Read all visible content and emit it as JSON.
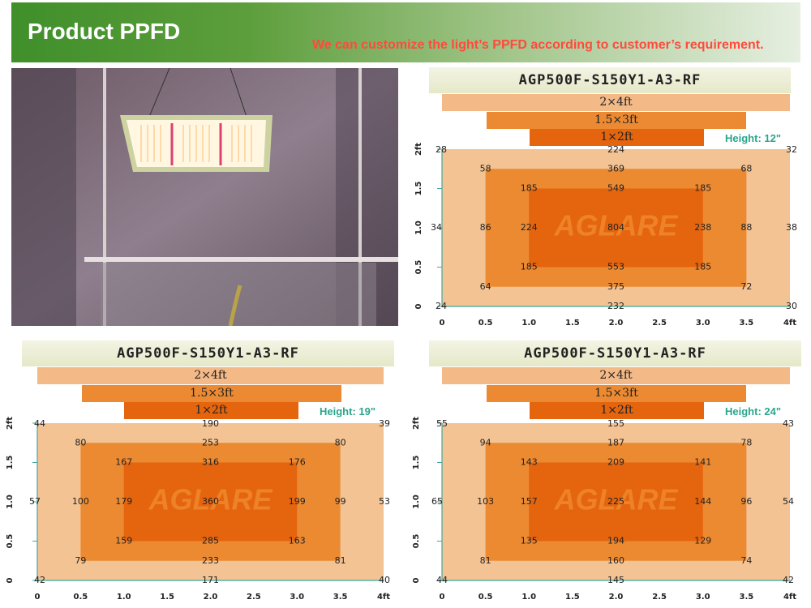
{
  "header": {
    "title": "Product PPFD",
    "subtitle": "We can customize the light’s PPFD according to customer’s requirement.",
    "colors": {
      "green": "#4d952f",
      "subtitle": "#ff4a3c"
    }
  },
  "photo": {
    "icon": "grow-light-photo"
  },
  "brand_watermark": "AGLARE",
  "colors": {
    "zone_outer": "#f3c394",
    "zone_mid": "#ec8a32",
    "zone_inner": "#e5640e",
    "bar_outer": "#f3b987",
    "height_text": "#2aa58d"
  },
  "x_ticks": [
    "0",
    "0.5",
    "1.0",
    "1.5",
    "2.0",
    "2.5",
    "3.0",
    "3.5",
    "4ft"
  ],
  "y_ticks": [
    "0",
    "0.5",
    "1.0",
    "1.5",
    "2ft"
  ],
  "panels": [
    {
      "model": "AGP500F-S150Y1-A3-RF",
      "bars": [
        "2×4ft",
        "1.5×3ft",
        "1×2ft"
      ],
      "height": "Height: 12\"",
      "values": {
        "r20": [
          "28",
          "224",
          "32"
        ],
        "r175": [
          "58",
          "369",
          "68"
        ],
        "r15": [
          "185",
          "549",
          "185"
        ],
        "r10": [
          "34",
          "86",
          "224",
          "804",
          "238",
          "88",
          "38"
        ],
        "r05": [
          "185",
          "553",
          "185"
        ],
        "r025": [
          "64",
          "375",
          "72"
        ],
        "r0": [
          "24",
          "232",
          "30"
        ]
      }
    },
    {
      "model": "AGP500F-S150Y1-A3-RF",
      "bars": [
        "2×4ft",
        "1.5×3ft",
        "1×2ft"
      ],
      "height": "Height: 19\"",
      "values": {
        "r20": [
          "44",
          "190",
          "39"
        ],
        "r175": [
          "80",
          "253",
          "80"
        ],
        "r15": [
          "167",
          "316",
          "176"
        ],
        "r10": [
          "57",
          "100",
          "179",
          "360",
          "199",
          "99",
          "53"
        ],
        "r05": [
          "159",
          "285",
          "163"
        ],
        "r025": [
          "79",
          "233",
          "81"
        ],
        "r0": [
          "42",
          "171",
          "40"
        ]
      }
    },
    {
      "model": "AGP500F-S150Y1-A3-RF",
      "bars": [
        "2×4ft",
        "1.5×3ft",
        "1×2ft"
      ],
      "height": "Height: 24\"",
      "values": {
        "r20": [
          "55",
          "155",
          "43"
        ],
        "r175": [
          "94",
          "187",
          "78"
        ],
        "r15": [
          "143",
          "209",
          "141"
        ],
        "r10": [
          "65",
          "103",
          "157",
          "225",
          "144",
          "96",
          "54"
        ],
        "r05": [
          "135",
          "194",
          "129"
        ],
        "r025": [
          "81",
          "160",
          "74"
        ],
        "r0": [
          "44",
          "145",
          "42"
        ]
      }
    }
  ]
}
